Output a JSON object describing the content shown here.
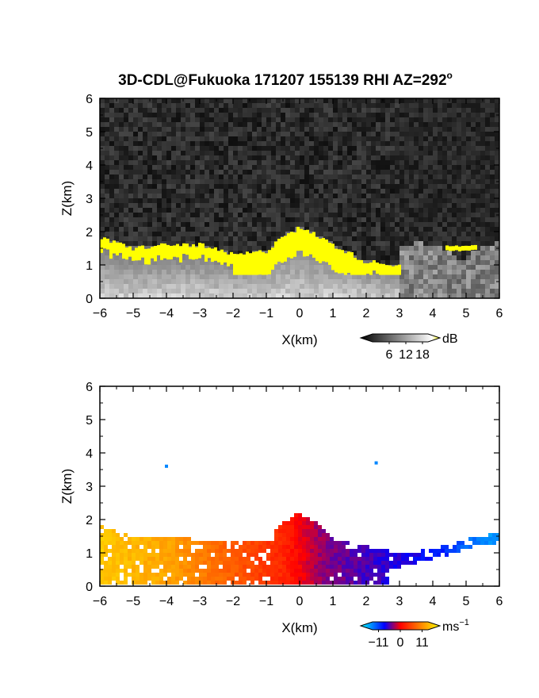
{
  "title": {
    "text": "3D-CDL@Fukuoka 171207 155139 RHI AZ=292",
    "degree_mark": "o"
  },
  "chart_data": [
    {
      "type": "heatmap",
      "name": "intensity",
      "xlabel": "X(km)",
      "ylabel": "Z(km)",
      "xlim": [
        -6,
        6
      ],
      "ylim": [
        0,
        6
      ],
      "xticks": [
        "-6",
        "-5",
        "-4",
        "-3",
        "-2",
        "-1",
        "0",
        "1",
        "2",
        "3",
        "4",
        "5",
        "6"
      ],
      "yticks": [
        "0",
        "1",
        "2",
        "3",
        "4",
        "5",
        "6"
      ],
      "background": "noise",
      "colorbar": {
        "unit": "dB",
        "ticks": [
          "6",
          "12",
          "18"
        ],
        "range": [
          0,
          20
        ],
        "extend": "both",
        "colors": {
          "low": "#000000",
          "high": "#ffffff",
          "saturated": "#ffff00"
        }
      },
      "features": [
        {
          "name": "top-of-strong-return",
          "x": [
            -6.0,
            -5.0,
            -4.0,
            -3.0,
            -2.0,
            -1.0,
            -0.5,
            0.0,
            0.5,
            1.0,
            2.0,
            3.0
          ],
          "z_top": [
            1.8,
            1.5,
            1.6,
            1.6,
            1.3,
            1.4,
            1.9,
            2.1,
            1.9,
            1.6,
            1.1,
            1.0
          ]
        }
      ]
    },
    {
      "type": "heatmap",
      "name": "doppler-velocity",
      "xlabel": "X(km)",
      "ylabel": "Z(km)",
      "xlim": [
        -6,
        6
      ],
      "ylim": [
        0,
        6
      ],
      "xticks": [
        "-6",
        "-5",
        "-4",
        "-3",
        "-2",
        "-1",
        "0",
        "1",
        "2",
        "3",
        "4",
        "5",
        "6"
      ],
      "yticks": [
        "0",
        "1",
        "2",
        "3",
        "4",
        "5",
        "6"
      ],
      "colorbar": {
        "unit": "ms",
        "unit_exponent": "−1",
        "ticks": [
          "−11",
          "0",
          "11"
        ],
        "range": [
          -14,
          14
        ],
        "extend": "both",
        "colors": [
          "#00ffff",
          "#0000ff",
          "#ff0000",
          "#ffff00"
        ]
      },
      "profile": {
        "x": [
          -6.0,
          -5.0,
          -4.0,
          -3.0,
          -2.0,
          -1.0,
          -0.5,
          0.0,
          0.5,
          1.0,
          2.0,
          3.0,
          4.0,
          5.0,
          6.0
        ],
        "velocity": [
          11,
          10,
          9,
          7,
          5,
          3,
          2,
          0,
          -2,
          -3,
          -4,
          -5,
          -6,
          -9,
          -11
        ],
        "z_top": [
          1.8,
          1.5,
          1.5,
          1.4,
          1.3,
          1.3,
          1.9,
          2.2,
          1.9,
          1.4,
          1.2,
          1.0,
          1.1,
          1.4,
          1.6
        ]
      },
      "isolated_points": [
        {
          "x": -4.0,
          "z": 3.6,
          "velocity": -10
        },
        {
          "x": 2.3,
          "z": 3.7,
          "velocity": -10
        }
      ]
    }
  ]
}
